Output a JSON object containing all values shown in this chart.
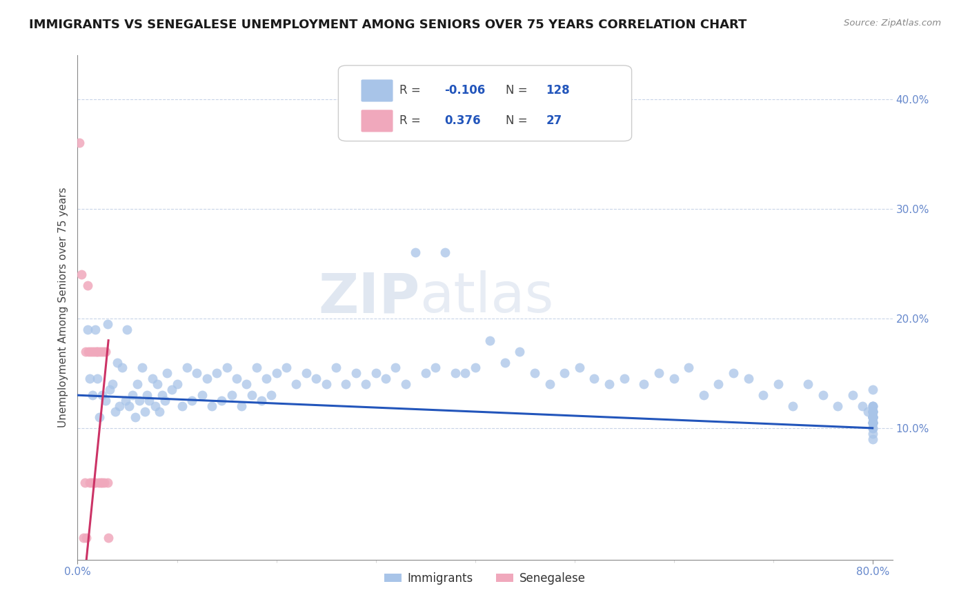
{
  "title": "IMMIGRANTS VS SENEGALESE UNEMPLOYMENT AMONG SENIORS OVER 75 YEARS CORRELATION CHART",
  "source": "Source: ZipAtlas.com",
  "ylabel": "Unemployment Among Seniors over 75 years",
  "xlim": [
    0.0,
    0.82
  ],
  "ylim": [
    -0.02,
    0.44
  ],
  "xticks": [
    0.0,
    0.8
  ],
  "xticklabels": [
    "0.0%",
    "80.0%"
  ],
  "yticks_left": [],
  "yticks_right": [
    0.1,
    0.2,
    0.3,
    0.4
  ],
  "yticklabels_right": [
    "10.0%",
    "20.0%",
    "30.0%",
    "40.0%"
  ],
  "legend_R1": "-0.106",
  "legend_N1": "128",
  "legend_R2": "0.376",
  "legend_N2": "27",
  "blue_color": "#a8c4e8",
  "pink_color": "#f0a8bc",
  "blue_line_color": "#2255bb",
  "pink_line_color": "#cc3366",
  "tick_color": "#6688cc",
  "watermark_text": "ZIPatlas",
  "immigrants_x": [
    0.01,
    0.012,
    0.015,
    0.018,
    0.02,
    0.022,
    0.025,
    0.028,
    0.03,
    0.032,
    0.035,
    0.038,
    0.04,
    0.042,
    0.045,
    0.048,
    0.05,
    0.052,
    0.055,
    0.058,
    0.06,
    0.062,
    0.065,
    0.068,
    0.07,
    0.072,
    0.075,
    0.078,
    0.08,
    0.082,
    0.085,
    0.088,
    0.09,
    0.095,
    0.1,
    0.105,
    0.11,
    0.115,
    0.12,
    0.125,
    0.13,
    0.135,
    0.14,
    0.145,
    0.15,
    0.155,
    0.16,
    0.165,
    0.17,
    0.175,
    0.18,
    0.185,
    0.19,
    0.195,
    0.2,
    0.21,
    0.22,
    0.23,
    0.24,
    0.25,
    0.26,
    0.27,
    0.28,
    0.29,
    0.3,
    0.31,
    0.32,
    0.33,
    0.34,
    0.35,
    0.36,
    0.37,
    0.38,
    0.39,
    0.4,
    0.415,
    0.43,
    0.445,
    0.46,
    0.475,
    0.49,
    0.505,
    0.52,
    0.535,
    0.55,
    0.57,
    0.585,
    0.6,
    0.615,
    0.63,
    0.645,
    0.66,
    0.675,
    0.69,
    0.705,
    0.72,
    0.735,
    0.75,
    0.765,
    0.78,
    0.79,
    0.795,
    0.8,
    0.8,
    0.8,
    0.8,
    0.8,
    0.8,
    0.8,
    0.8,
    0.8,
    0.8,
    0.8,
    0.8,
    0.8,
    0.8,
    0.8,
    0.8,
    0.8,
    0.8,
    0.8,
    0.8,
    0.8,
    0.8,
    0.8,
    0.8,
    0.8,
    0.8
  ],
  "immigrants_y": [
    0.19,
    0.145,
    0.13,
    0.19,
    0.145,
    0.11,
    0.13,
    0.125,
    0.195,
    0.135,
    0.14,
    0.115,
    0.16,
    0.12,
    0.155,
    0.125,
    0.19,
    0.12,
    0.13,
    0.11,
    0.14,
    0.125,
    0.155,
    0.115,
    0.13,
    0.125,
    0.145,
    0.12,
    0.14,
    0.115,
    0.13,
    0.125,
    0.15,
    0.135,
    0.14,
    0.12,
    0.155,
    0.125,
    0.15,
    0.13,
    0.145,
    0.12,
    0.15,
    0.125,
    0.155,
    0.13,
    0.145,
    0.12,
    0.14,
    0.13,
    0.155,
    0.125,
    0.145,
    0.13,
    0.15,
    0.155,
    0.14,
    0.15,
    0.145,
    0.14,
    0.155,
    0.14,
    0.15,
    0.14,
    0.15,
    0.145,
    0.155,
    0.14,
    0.26,
    0.15,
    0.155,
    0.26,
    0.15,
    0.15,
    0.155,
    0.18,
    0.16,
    0.17,
    0.15,
    0.14,
    0.15,
    0.155,
    0.145,
    0.14,
    0.145,
    0.14,
    0.15,
    0.145,
    0.155,
    0.13,
    0.14,
    0.15,
    0.145,
    0.13,
    0.14,
    0.12,
    0.14,
    0.13,
    0.12,
    0.13,
    0.12,
    0.115,
    0.135,
    0.12,
    0.11,
    0.115,
    0.12,
    0.11,
    0.105,
    0.115,
    0.11,
    0.105,
    0.12,
    0.115,
    0.11,
    0.105,
    0.115,
    0.11,
    0.105,
    0.11,
    0.105,
    0.1,
    0.115,
    0.11,
    0.105,
    0.1,
    0.095,
    0.09
  ],
  "senegalese_x": [
    0.002,
    0.004,
    0.006,
    0.007,
    0.008,
    0.009,
    0.01,
    0.011,
    0.012,
    0.013,
    0.014,
    0.015,
    0.016,
    0.017,
    0.018,
    0.019,
    0.02,
    0.021,
    0.022,
    0.023,
    0.024,
    0.025,
    0.026,
    0.027,
    0.028,
    0.03,
    0.031
  ],
  "senegalese_y": [
    0.36,
    0.24,
    0.0,
    0.05,
    0.17,
    0.0,
    0.23,
    0.17,
    0.05,
    0.17,
    0.05,
    0.17,
    0.05,
    0.17,
    0.05,
    0.17,
    0.17,
    0.05,
    0.17,
    0.05,
    0.17,
    0.05,
    0.17,
    0.05,
    0.17,
    0.05,
    0.0
  ]
}
